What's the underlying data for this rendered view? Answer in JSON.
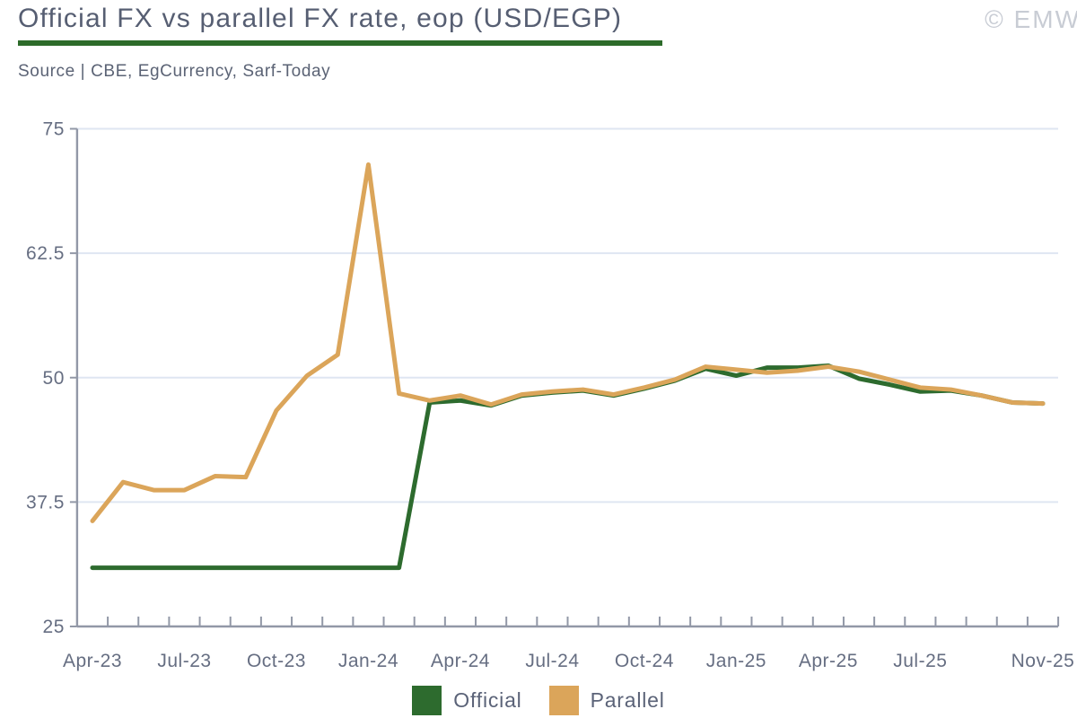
{
  "header": {
    "title": "Official FX vs parallel FX rate, eop (USD/EGP)",
    "source": "Source | CBE, EgCurrency, Sarf-Today",
    "watermark": "© EMW"
  },
  "colors": {
    "accent_green": "#2d6b2e",
    "accent_orange": "#dba55a",
    "title_text": "#565e72",
    "source_text": "#5b6375",
    "axis_labels": "#666e82",
    "axis_line": "#9298a7",
    "gridline": "#dfe6f2",
    "watermark_text": "#c8ccd4"
  },
  "chart_data": {
    "type": "line",
    "title": "Official FX vs parallel FX rate, eop (USD/EGP)",
    "xlabel": "",
    "ylabel": "",
    "ylim": [
      25,
      75
    ],
    "y_ticks": [
      75,
      62.5,
      50,
      37.5,
      25
    ],
    "grid": true,
    "legend_position": "bottom",
    "x": [
      "Apr-23",
      "May-23",
      "Jun-23",
      "Jul-23",
      "Aug-23",
      "Sep-23",
      "Oct-23",
      "Nov-23",
      "Dec-23",
      "Jan-24",
      "Feb-24",
      "Mar-24",
      "Apr-24",
      "May-24",
      "Jun-24",
      "Jul-24",
      "Aug-24",
      "Sep-24",
      "Oct-24",
      "Nov-24",
      "Dec-24",
      "Jan-25",
      "Feb-25",
      "Mar-25",
      "Apr-25",
      "May-25",
      "Jun-25",
      "Jul-25",
      "Aug-25",
      "Sep-25",
      "Oct-25",
      "Nov-25"
    ],
    "x_tick_labels": [
      "Apr-23",
      "Jul-23",
      "Oct-23",
      "Jan-24",
      "Apr-24",
      "Jul-24",
      "Oct-24",
      "Jan-25",
      "Apr-25",
      "Jul-25",
      "Nov-25"
    ],
    "x_tick_label_indices": [
      0,
      3,
      6,
      9,
      12,
      15,
      18,
      21,
      24,
      27,
      31
    ],
    "series": [
      {
        "name": "Official",
        "color": "#2d6b2e",
        "values": [
          30.9,
          30.9,
          30.9,
          30.9,
          30.9,
          30.9,
          30.9,
          30.9,
          30.9,
          30.9,
          30.9,
          47.5,
          47.7,
          47.2,
          48.2,
          48.5,
          48.7,
          48.2,
          48.9,
          49.7,
          50.9,
          50.2,
          51.0,
          51.0,
          51.2,
          49.9,
          49.3,
          48.6,
          48.7,
          48.2,
          47.5,
          47.4
        ]
      },
      {
        "name": "Parallel",
        "color": "#dba55a",
        "values": [
          35.6,
          39.5,
          38.7,
          38.7,
          40.1,
          40.0,
          46.7,
          50.2,
          52.3,
          71.4,
          48.4,
          47.7,
          48.2,
          47.3,
          48.3,
          48.6,
          48.8,
          48.3,
          49.0,
          49.8,
          51.1,
          50.8,
          50.5,
          50.7,
          51.1,
          50.6,
          49.8,
          49.0,
          48.8,
          48.2,
          47.5,
          47.4
        ]
      }
    ]
  }
}
